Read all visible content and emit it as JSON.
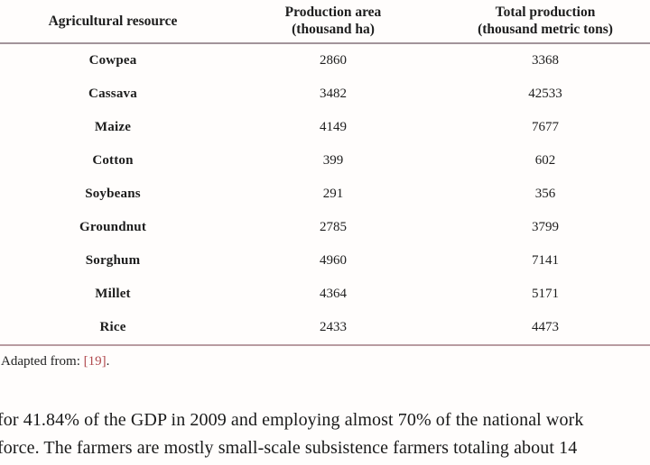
{
  "table": {
    "header": {
      "col1": "Agricultural resource",
      "col2_line1": "Production area",
      "col2_line2": "(thousand ha)",
      "col3_line1": "Total production",
      "col3_line2": "(thousand metric tons)"
    },
    "rows": [
      {
        "resource": "Cowpea",
        "area": "2860",
        "production": "3368"
      },
      {
        "resource": "Cassava",
        "area": "3482",
        "production": "42533"
      },
      {
        "resource": "Maize",
        "area": "4149",
        "production": "7677"
      },
      {
        "resource": "Cotton",
        "area": "399",
        "production": "602"
      },
      {
        "resource": "Soybeans",
        "area": "291",
        "production": "356"
      },
      {
        "resource": "Groundnut",
        "area": "2785",
        "production": "3799"
      },
      {
        "resource": "Sorghum",
        "area": "4960",
        "production": "7141"
      },
      {
        "resource": "Millet",
        "area": "4364",
        "production": "5171"
      },
      {
        "resource": "Rice",
        "area": "2433",
        "production": "4473"
      }
    ]
  },
  "caption": {
    "prefix": "Adapted from: ",
    "reference": "[19]",
    "suffix": "."
  },
  "body_text": {
    "line1": "for 41.84% of the GDP in 2009 and employing almost 70% of the national work",
    "line2": "force. The farmers are mostly small-scale subsistence farmers totaling about 14"
  },
  "colors": {
    "header_rule": "#a2949a",
    "bottom_rule": "#b89ba1",
    "reference_red": "#b0494d",
    "text": "#1d1d1d",
    "background": "#fffdfc"
  }
}
